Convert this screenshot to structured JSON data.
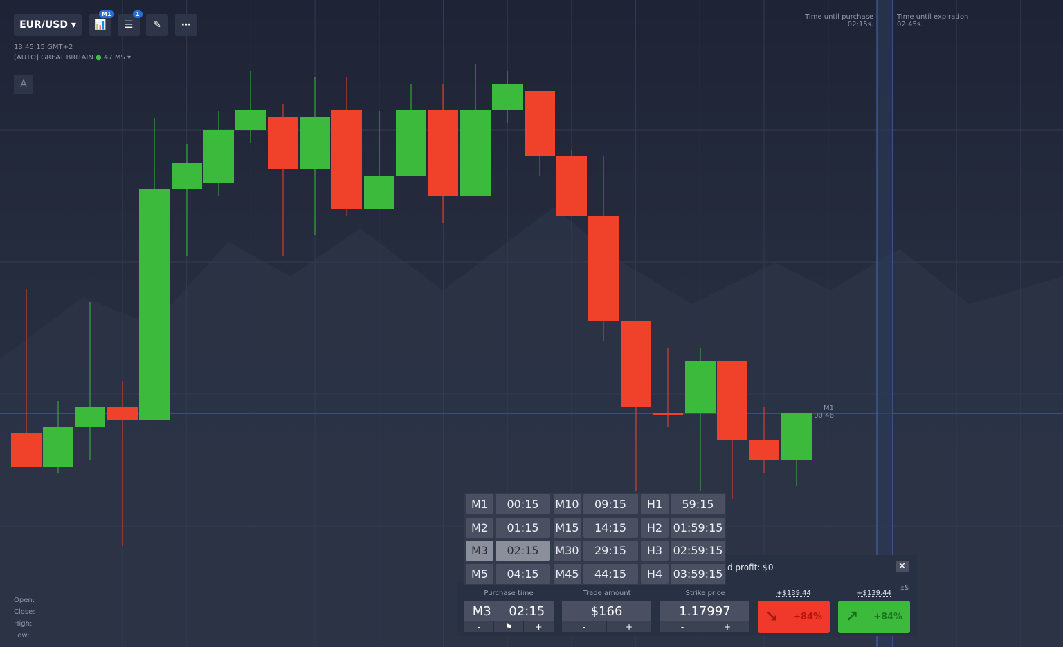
{
  "toolbar": {
    "asset": "EUR/USD",
    "timeframe_badge": "M1",
    "indicator_badge": "1"
  },
  "info": {
    "time": "13:45:15 GMT+2",
    "server": "[AUTO] GREAT BRITAIN",
    "ping": "47 MS",
    "draw_mode": "A"
  },
  "timers": {
    "purchase_label": "Time until purchase",
    "purchase_value": "02:15s.",
    "expiration_label": "Time until expiration",
    "expiration_value": "02:45s."
  },
  "current_candle": {
    "timeframe": "M1",
    "remaining": "00:46"
  },
  "ohlc": [
    "Open:",
    "Close:",
    "High:",
    "Low:"
  ],
  "expiration_options": [
    [
      "M1",
      "00:15"
    ],
    [
      "M10",
      "09:15"
    ],
    [
      "H1",
      "59:15"
    ],
    [
      "M2",
      "01:15"
    ],
    [
      "M15",
      "14:15"
    ],
    [
      "H2",
      "01:59:15"
    ],
    [
      "M3",
      "02:15"
    ],
    [
      "M30",
      "29:15"
    ],
    [
      "H3",
      "02:59:15"
    ],
    [
      "M5",
      "04:15"
    ],
    [
      "M45",
      "44:15"
    ],
    [
      "H4",
      "03:59:15"
    ]
  ],
  "profit_bar": "d profit: $0",
  "trade_panel": {
    "purchase_time_label": "Purchase time",
    "purchase_timeframe": "M3",
    "purchase_time": "02:15",
    "trade_amount_label": "Trade amount",
    "trade_amount": "$166",
    "strike_price_label": "Strike price",
    "strike_price": "1.17997",
    "minus": "-",
    "plus": "+",
    "currency_toggle": "Ξ$",
    "down": {
      "payout": "+$139.44",
      "percent": "+84%"
    },
    "up": {
      "payout": "+$139.44",
      "percent": "+84%"
    }
  }
}
